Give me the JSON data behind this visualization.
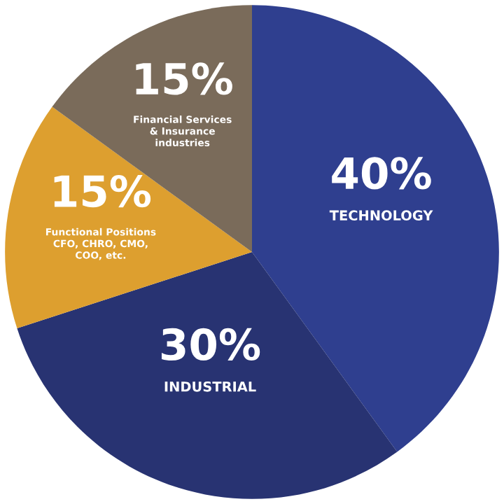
{
  "chart_data": {
    "type": "pie",
    "categories": [
      "TECHNOLOGY",
      "INDUSTRIAL",
      "Functional Positions\nCFO, CHRO, CMO,\nCOO, etc.",
      "Financial Services\n& Insurance\nindustries"
    ],
    "values": [
      40,
      30,
      15,
      15
    ],
    "value_labels": [
      "40%",
      "30%",
      "15%",
      "15%"
    ],
    "colors": [
      "#2f3f8f",
      "#283372",
      "#dd9f2f",
      "#7a6b5a"
    ]
  }
}
